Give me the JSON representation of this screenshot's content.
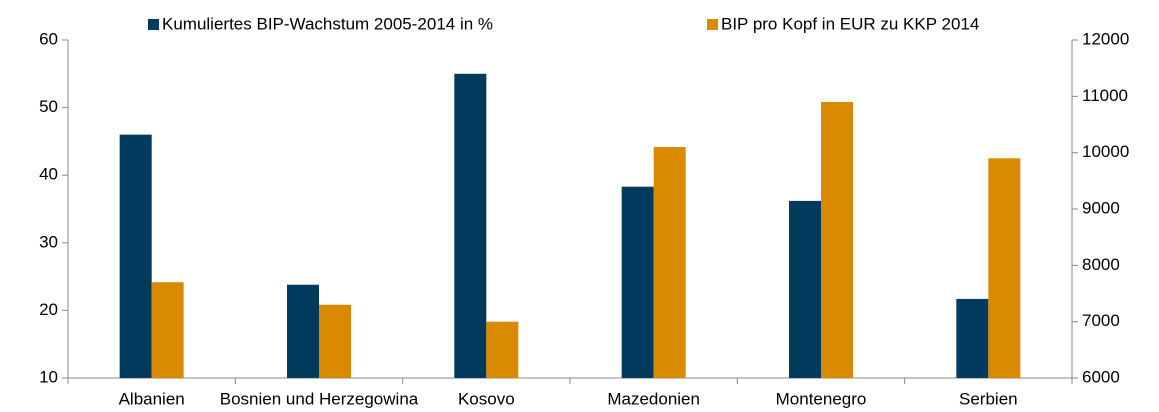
{
  "chart_data": {
    "type": "bar",
    "categories": [
      "Albanien",
      "Bosnien und Herzegowina",
      "Kosovo",
      "Mazedonien",
      "Montenegro",
      "Serbien"
    ],
    "series": [
      {
        "name": "Kumuliertes BIP-Wachstum 2005-2014 in %",
        "color": "#003a5d",
        "values": [
          46,
          23.8,
          55,
          38.3,
          36.2,
          21.7
        ]
      },
      {
        "name": "BIP pro Kopf in EUR zu KKP 2014",
        "color": "#d98a00",
        "axis": "y2",
        "values": [
          7700,
          7300,
          7000,
          10100,
          10900,
          9900
        ]
      }
    ],
    "ylim": [
      10,
      60
    ],
    "yticks": [
      10,
      20,
      30,
      40,
      50,
      60
    ],
    "y2lim": [
      6000,
      12000
    ],
    "y2ticks": [
      6000,
      7000,
      8000,
      9000,
      10000,
      11000,
      12000
    ],
    "grid": false,
    "legend": "top"
  }
}
